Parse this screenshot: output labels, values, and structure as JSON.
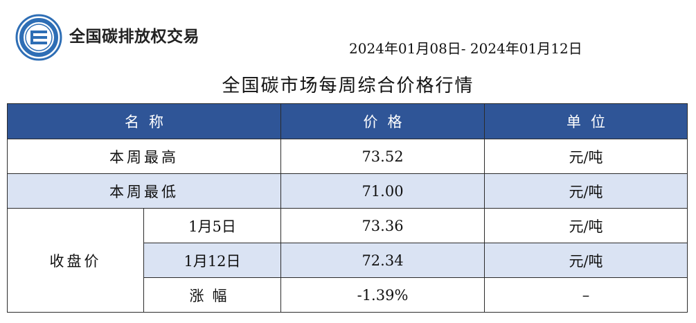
{
  "brand": {
    "logo_icon": "exchange-logo-icon",
    "name": "全国碳排放权交易"
  },
  "date_range": "2024年01月08日- 2024年01月12日",
  "title": "全国碳市场每周综合价格行情",
  "colors": {
    "header_bg": "#2f5597",
    "shade_bg": "#dae3f3",
    "logo_blue": "#2e6eb5"
  },
  "table": {
    "headers": {
      "name": "名称",
      "price": "价格",
      "unit": "单位"
    },
    "rows": {
      "weekly_high": {
        "label": "本周最高",
        "price": "73.52",
        "unit": "元/吨"
      },
      "weekly_low": {
        "label": "本周最低",
        "price": "71.00",
        "unit": "元/吨"
      },
      "closing": {
        "label": "收盘价",
        "jan5": {
          "date": "1月5日",
          "price": "73.36",
          "unit": "元/吨"
        },
        "jan12": {
          "date": "1月12日",
          "price": "72.34",
          "unit": "元/吨"
        },
        "change": {
          "label": "涨幅",
          "price": "-1.39%",
          "unit": "–"
        }
      }
    }
  }
}
